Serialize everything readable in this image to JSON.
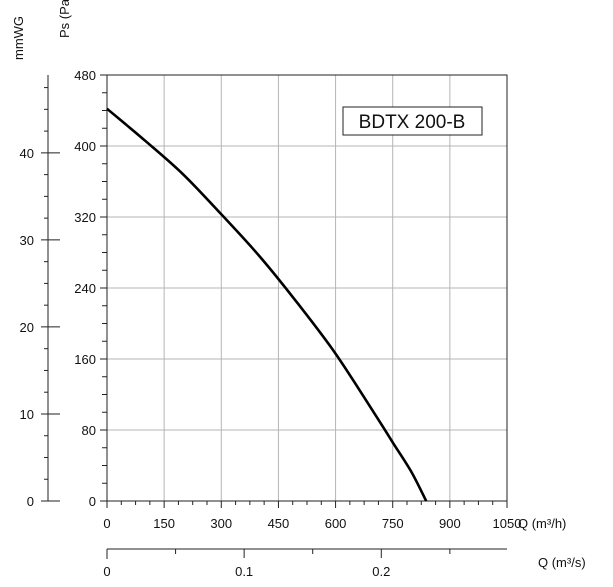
{
  "chart_data": {
    "type": "line",
    "title": "BDTX 200-B",
    "xlabel": "Q (m³/h)",
    "ylabel": "Ps (Pa)",
    "y2label": "mmWG",
    "x2label": "Q (m³/s)",
    "xlim": [
      0,
      1050
    ],
    "ylim": [
      0,
      480
    ],
    "x_ticks": [
      0,
      150,
      300,
      450,
      600,
      750,
      900,
      1050
    ],
    "y_ticks": [
      0,
      80,
      160,
      240,
      320,
      400,
      480
    ],
    "mmwg_ticks": [
      0,
      10,
      20,
      30,
      40
    ],
    "x2_ticks": [
      0,
      0.1,
      0.2
    ],
    "x2_tick_labels": [
      "0",
      "0.1",
      "0.2"
    ],
    "grid": true,
    "series": [
      {
        "x": [
          0,
          100,
          200,
          300,
          400,
          500,
          600,
          700,
          750,
          800,
          838
        ],
        "y": [
          442,
          406,
          368,
          323,
          276,
          223,
          166,
          100,
          66,
          32,
          0
        ]
      }
    ]
  }
}
